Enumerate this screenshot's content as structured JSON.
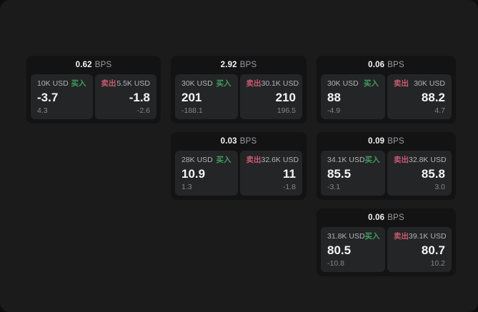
{
  "labels": {
    "bps_unit": "BPS",
    "buy": "买入",
    "sell": "卖出"
  },
  "colors": {
    "page_background": "#0d0d0d",
    "panel_background": "#1b1b1c",
    "card_background": "#131314",
    "subcard_background": "#242527",
    "buy_accent": "#3f9e5c",
    "sell_accent": "#c85a6e"
  },
  "cards": [
    {
      "row": 1,
      "col": 1,
      "bps": "0.62",
      "buy": {
        "amount": "10K USD",
        "value": "-3.7",
        "change": "4.3"
      },
      "sell": {
        "amount": "5.5K USD",
        "value": "-1.8",
        "change": "-2.6"
      }
    },
    {
      "row": 1,
      "col": 2,
      "bps": "2.92",
      "buy": {
        "amount": "30K USD",
        "value": "201",
        "change": "-188.1"
      },
      "sell": {
        "amount": "30.1K USD",
        "value": "210",
        "change": "196.5"
      }
    },
    {
      "row": 1,
      "col": 3,
      "bps": "0.06",
      "buy": {
        "amount": "30K USD",
        "value": "88",
        "change": "-4.9"
      },
      "sell": {
        "amount": "30K USD",
        "value": "88.2",
        "change": "4.7"
      }
    },
    {
      "row": 2,
      "col": 2,
      "bps": "0.03",
      "buy": {
        "amount": "28K USD",
        "value": "10.9",
        "change": "1.3"
      },
      "sell": {
        "amount": "32.6K USD",
        "value": "11",
        "change": "-1.8"
      }
    },
    {
      "row": 2,
      "col": 3,
      "bps": "0.09",
      "buy": {
        "amount": "34.1K USD",
        "value": "85.5",
        "change": "-3.1"
      },
      "sell": {
        "amount": "32.8K USD",
        "value": "85.8",
        "change": "3.0"
      }
    },
    {
      "row": 3,
      "col": 3,
      "bps": "0.06",
      "buy": {
        "amount": "31.8K USD",
        "value": "80.5",
        "change": "-10.8"
      },
      "sell": {
        "amount": "39.1K USD",
        "value": "80.7",
        "change": "10.2"
      }
    }
  ]
}
